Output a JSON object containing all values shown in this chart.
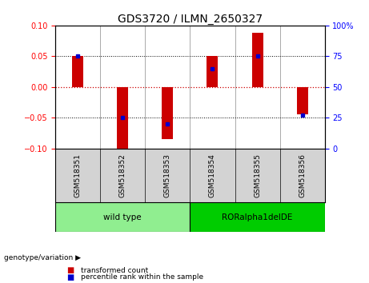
{
  "title": "GDS3720 / ILMN_2650327",
  "samples": [
    "GSM518351",
    "GSM518352",
    "GSM518353",
    "GSM518354",
    "GSM518355",
    "GSM518356"
  ],
  "bar_values": [
    0.05,
    -0.1,
    -0.085,
    0.05,
    0.088,
    -0.045
  ],
  "percentile_values": [
    75,
    25,
    20,
    65,
    75,
    27
  ],
  "ylim_left": [
    -0.1,
    0.1
  ],
  "ylim_right": [
    0,
    100
  ],
  "yticks_left": [
    -0.1,
    -0.05,
    0,
    0.05,
    0.1
  ],
  "yticks_right": [
    0,
    25,
    50,
    75,
    100
  ],
  "bar_color": "#cc0000",
  "dot_color": "#0000cc",
  "bar_width": 0.25,
  "groups": [
    {
      "label": "wild type",
      "indices": [
        0,
        1,
        2
      ],
      "color": "#90ee90"
    },
    {
      "label": "RORalpha1delDE",
      "indices": [
        3,
        4,
        5
      ],
      "color": "#00cc00"
    }
  ],
  "group_label": "genotype/variation",
  "legend_items": [
    {
      "label": "transformed count",
      "color": "#cc0000"
    },
    {
      "label": "percentile rank within the sample",
      "color": "#0000cc"
    }
  ],
  "bg_color": "#ffffff",
  "plot_bg": "#ffffff",
  "zero_line_color": "#cc0000",
  "title_fontsize": 10,
  "tick_fontsize": 7,
  "sample_fontsize": 6.5,
  "group_fontsize": 7.5,
  "label_fontsize": 7
}
